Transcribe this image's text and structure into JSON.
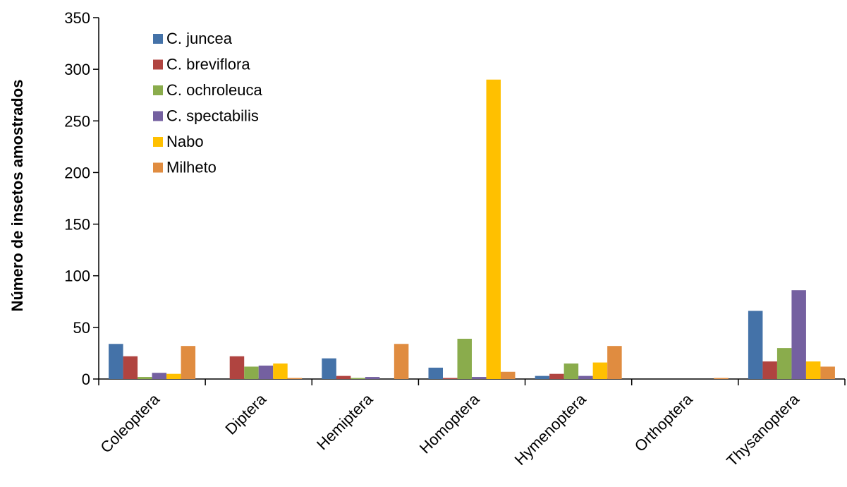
{
  "chart_data": {
    "type": "bar",
    "title": "",
    "xlabel": "",
    "ylabel": "Número de insetos amostrados",
    "ylim": [
      0,
      350
    ],
    "yticks": [
      0,
      50,
      100,
      150,
      200,
      250,
      300,
      350
    ],
    "grid": false,
    "legend_position": "top-left",
    "categories": [
      "Coleoptera",
      "Diptera",
      "Hemiptera",
      "Homoptera",
      "Hymenoptera",
      "Orthoptera",
      "Thysanoptera"
    ],
    "series": [
      {
        "name": "C. juncea",
        "color": "#4472a8",
        "values": [
          34,
          0,
          20,
          11,
          3,
          0,
          66
        ]
      },
      {
        "name": "C. breviflora",
        "color": "#b04440",
        "values": [
          22,
          22,
          3,
          1,
          5,
          0,
          17
        ]
      },
      {
        "name": "C. ochroleuca",
        "color": "#8aac4c",
        "values": [
          2,
          12,
          1,
          39,
          15,
          0,
          30
        ]
      },
      {
        "name": "C. spectabilis",
        "color": "#7460a0",
        "values": [
          6,
          13,
          2,
          2,
          3,
          0,
          86
        ]
      },
      {
        "name": "Nabo",
        "color": "#ffc000",
        "values": [
          5,
          15,
          0,
          290,
          16,
          0,
          17
        ]
      },
      {
        "name": "Milheto",
        "color": "#e08c40",
        "values": [
          32,
          1,
          34,
          7,
          32,
          1,
          12
        ]
      }
    ]
  }
}
